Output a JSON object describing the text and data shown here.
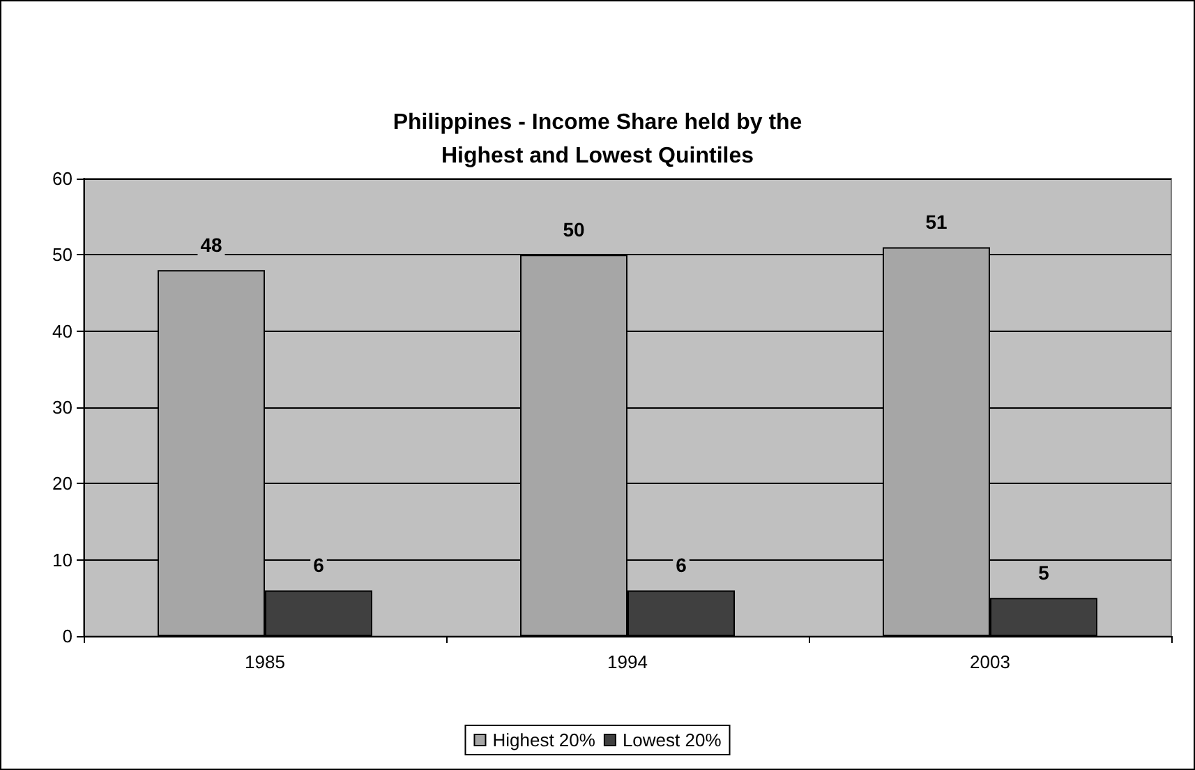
{
  "chart_data": {
    "type": "bar",
    "title": "Philippines - Income Share held by the\nHighest and Lowest Quintiles",
    "categories": [
      "1985",
      "1994",
      "2003"
    ],
    "series": [
      {
        "name": "Highest 20%",
        "color": "#a6a6a6",
        "values": [
          48,
          50,
          51
        ]
      },
      {
        "name": "Lowest 20%",
        "color": "#404040",
        "values": [
          6,
          6,
          5
        ]
      }
    ],
    "ylim": [
      0,
      60
    ],
    "yticks": [
      0,
      10,
      20,
      30,
      40,
      50,
      60
    ],
    "grid": "y",
    "legend": "bottom",
    "data_labels": true
  }
}
